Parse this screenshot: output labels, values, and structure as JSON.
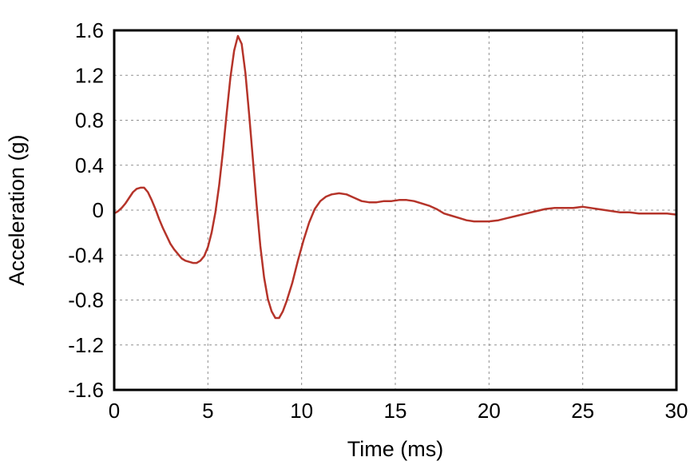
{
  "figure": {
    "background": "#ffffff"
  },
  "chart_data": {
    "type": "line",
    "title": "",
    "xlabel": "Time (ms)",
    "ylabel": "Acceleration (g)",
    "xlim": [
      0,
      30
    ],
    "ylim": [
      -1.6,
      1.6
    ],
    "xticks": [
      0,
      5,
      10,
      15,
      20,
      25,
      30
    ],
    "xtick_labels": [
      "0",
      "5",
      "10",
      "15",
      "20",
      "25",
      "30"
    ],
    "yticks": [
      1.6,
      1.2,
      0.8,
      0.4,
      0,
      -0.4,
      -0.8,
      -1.2,
      -1.6
    ],
    "ytick_labels": [
      "1.6",
      "1.2",
      "0.8",
      "0.4",
      "0",
      "-0.4",
      "-0.8",
      "-1.2",
      "-1.6"
    ],
    "grid": "dashed",
    "grid_color": "#909090",
    "frame_color": "#000000",
    "legend": "none",
    "series": [
      {
        "name": "acceleration-trace",
        "color": "#b5342a",
        "points": [
          [
            0.0,
            -0.03
          ],
          [
            0.2,
            -0.01
          ],
          [
            0.4,
            0.02
          ],
          [
            0.6,
            0.06
          ],
          [
            0.8,
            0.11
          ],
          [
            1.0,
            0.16
          ],
          [
            1.2,
            0.19
          ],
          [
            1.4,
            0.2
          ],
          [
            1.6,
            0.2
          ],
          [
            1.8,
            0.16
          ],
          [
            2.0,
            0.09
          ],
          [
            2.2,
            0.01
          ],
          [
            2.4,
            -0.08
          ],
          [
            2.6,
            -0.16
          ],
          [
            2.8,
            -0.23
          ],
          [
            3.0,
            -0.3
          ],
          [
            3.2,
            -0.35
          ],
          [
            3.4,
            -0.39
          ],
          [
            3.6,
            -0.43
          ],
          [
            3.8,
            -0.45
          ],
          [
            4.0,
            -0.46
          ],
          [
            4.2,
            -0.47
          ],
          [
            4.4,
            -0.47
          ],
          [
            4.6,
            -0.45
          ],
          [
            4.8,
            -0.41
          ],
          [
            5.0,
            -0.33
          ],
          [
            5.2,
            -0.2
          ],
          [
            5.4,
            -0.02
          ],
          [
            5.6,
            0.22
          ],
          [
            5.8,
            0.52
          ],
          [
            6.0,
            0.86
          ],
          [
            6.2,
            1.18
          ],
          [
            6.4,
            1.42
          ],
          [
            6.6,
            1.55
          ],
          [
            6.8,
            1.48
          ],
          [
            7.0,
            1.22
          ],
          [
            7.2,
            0.85
          ],
          [
            7.4,
            0.45
          ],
          [
            7.6,
            0.05
          ],
          [
            7.8,
            -0.32
          ],
          [
            8.0,
            -0.6
          ],
          [
            8.2,
            -0.79
          ],
          [
            8.4,
            -0.9
          ],
          [
            8.6,
            -0.96
          ],
          [
            8.8,
            -0.96
          ],
          [
            9.0,
            -0.9
          ],
          [
            9.2,
            -0.81
          ],
          [
            9.5,
            -0.65
          ],
          [
            9.8,
            -0.45
          ],
          [
            10.1,
            -0.27
          ],
          [
            10.4,
            -0.11
          ],
          [
            10.7,
            0.01
          ],
          [
            11.0,
            0.08
          ],
          [
            11.3,
            0.12
          ],
          [
            11.6,
            0.14
          ],
          [
            12.0,
            0.15
          ],
          [
            12.4,
            0.14
          ],
          [
            12.8,
            0.11
          ],
          [
            13.2,
            0.08
          ],
          [
            13.6,
            0.07
          ],
          [
            14.0,
            0.07
          ],
          [
            14.4,
            0.08
          ],
          [
            14.8,
            0.08
          ],
          [
            15.2,
            0.09
          ],
          [
            15.6,
            0.09
          ],
          [
            16.0,
            0.08
          ],
          [
            16.4,
            0.06
          ],
          [
            16.8,
            0.04
          ],
          [
            17.2,
            0.01
          ],
          [
            17.6,
            -0.03
          ],
          [
            18.0,
            -0.05
          ],
          [
            18.4,
            -0.07
          ],
          [
            18.8,
            -0.09
          ],
          [
            19.2,
            -0.1
          ],
          [
            19.6,
            -0.1
          ],
          [
            20.0,
            -0.1
          ],
          [
            20.5,
            -0.09
          ],
          [
            21.0,
            -0.07
          ],
          [
            21.5,
            -0.05
          ],
          [
            22.0,
            -0.03
          ],
          [
            22.5,
            -0.01
          ],
          [
            23.0,
            0.01
          ],
          [
            23.5,
            0.02
          ],
          [
            24.0,
            0.02
          ],
          [
            24.5,
            0.02
          ],
          [
            25.0,
            0.03
          ],
          [
            25.4,
            0.02
          ],
          [
            25.8,
            0.01
          ],
          [
            26.2,
            0.0
          ],
          [
            26.6,
            -0.01
          ],
          [
            27.0,
            -0.02
          ],
          [
            27.5,
            -0.02
          ],
          [
            28.0,
            -0.03
          ],
          [
            28.5,
            -0.03
          ],
          [
            29.0,
            -0.03
          ],
          [
            29.5,
            -0.03
          ],
          [
            30.0,
            -0.04
          ]
        ]
      }
    ]
  }
}
